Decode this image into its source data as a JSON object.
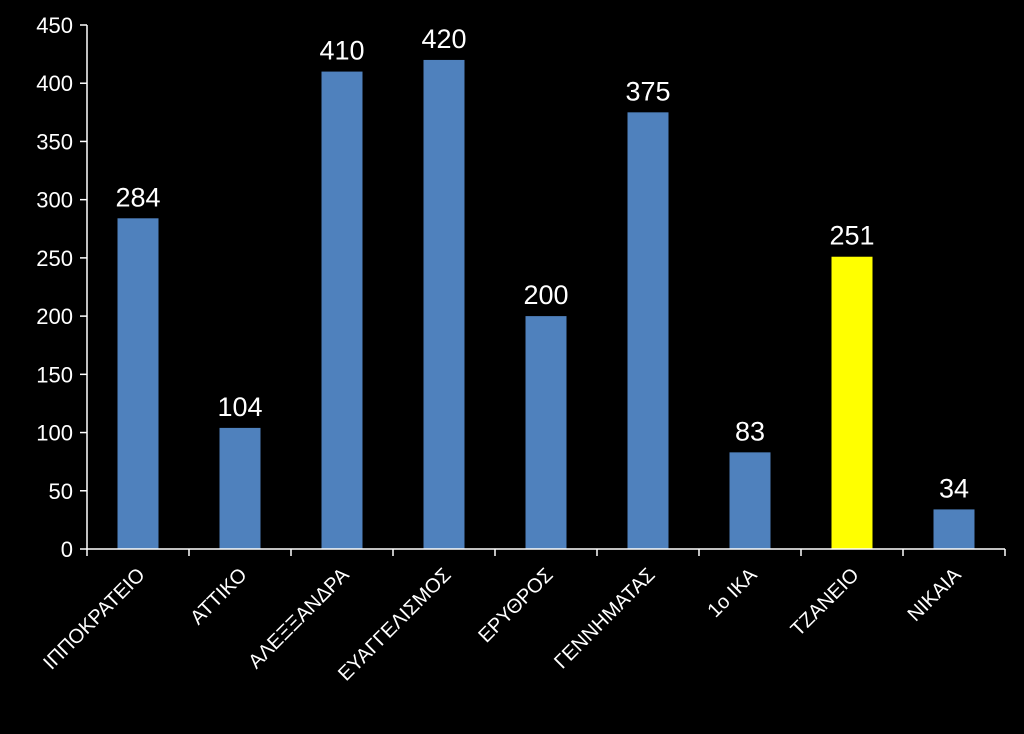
{
  "chart_data": {
    "type": "bar",
    "categories": [
      "ΙΠΠΟΚΡΑΤΕΙΟ",
      "ΑΤΤΙΚΟ",
      "ΑΛΕΞΞΑΝΔΡΑ",
      "ΕΥΑΓΓΕΛΙΣΜΟΣ",
      "ΕΡΥΘΡΟΣ",
      "ΓΕΝΝΗΜΑΤΑΣ",
      "1ο ΙΚΑ",
      "ΤΖΑΝΕΙΟ",
      "ΝΙΚΑΙΑ"
    ],
    "values": [
      284,
      104,
      410,
      420,
      200,
      375,
      83,
      251,
      34
    ],
    "data_labels": [
      "284",
      "104",
      "410",
      "420",
      "200",
      "375",
      "83",
      "251",
      "34"
    ],
    "bar_colors": [
      "#4f81bd",
      "#4f81bd",
      "#4f81bd",
      "#4f81bd",
      "#4f81bd",
      "#4f81bd",
      "#4f81bd",
      "#ffff00",
      "#4f81bd"
    ],
    "ylim": [
      0,
      450
    ],
    "yticks": [
      0,
      50,
      100,
      150,
      200,
      250,
      300,
      350,
      400,
      450
    ],
    "ytick_labels": [
      "0",
      "50",
      "100",
      "150",
      "200",
      "250",
      "300",
      "350",
      "400",
      "450"
    ],
    "grid": false,
    "legend": "none",
    "background": "#000000",
    "axis_color": "#ffffff",
    "text_color": "#ffffff"
  }
}
